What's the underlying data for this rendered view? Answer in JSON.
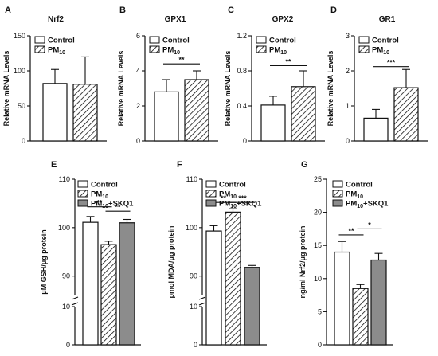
{
  "chart_data": [
    {
      "letter": "A",
      "type": "bar",
      "title": "Nrf2",
      "ylabel": "Relative mRNA Levels",
      "ylim": [
        0,
        150
      ],
      "yticks": [
        0,
        50,
        100,
        150
      ],
      "tick_labels": [
        "0",
        "50",
        "100",
        "150"
      ],
      "legend": [
        "Control",
        "PM10"
      ],
      "bars": [
        {
          "group": "Control",
          "value": 82,
          "error": 20,
          "fill": "open"
        },
        {
          "group": "PM10",
          "value": 81,
          "error": 39,
          "fill": "hatch"
        }
      ],
      "significance": []
    },
    {
      "letter": "B",
      "type": "bar",
      "title": "GPX1",
      "ylabel": "Relative mRNA Levels",
      "ylim": [
        0,
        6
      ],
      "yticks": [
        0,
        2,
        4,
        6
      ],
      "tick_labels": [
        "0",
        "2",
        "4",
        "6"
      ],
      "legend": [
        "Control",
        "PM10"
      ],
      "bars": [
        {
          "group": "Control",
          "value": 2.8,
          "error": 0.7,
          "fill": "open"
        },
        {
          "group": "PM10",
          "value": 3.5,
          "error": 0.5,
          "fill": "hatch"
        }
      ],
      "significance": [
        {
          "from": 0,
          "to": 1,
          "y": 4.4,
          "label": "**"
        }
      ]
    },
    {
      "letter": "C",
      "type": "bar",
      "title": "GPX2",
      "ylabel": "Relative mRNA Levels",
      "ylim": [
        0,
        1.2
      ],
      "yticks": [
        0,
        0.4,
        0.8,
        1.2
      ],
      "tick_labels": [
        "0",
        "0.4",
        "0.8",
        "1.2"
      ],
      "legend": [
        "Control",
        "PM10"
      ],
      "bars": [
        {
          "group": "Control",
          "value": 0.41,
          "error": 0.1,
          "fill": "open"
        },
        {
          "group": "PM10",
          "value": 0.62,
          "error": 0.18,
          "fill": "hatch"
        }
      ],
      "significance": [
        {
          "from": 0,
          "to": 1,
          "y": 0.86,
          "label": "**"
        }
      ]
    },
    {
      "letter": "D",
      "type": "bar",
      "title": "GR1",
      "ylabel": "Relative mRNA Levels",
      "ylim": [
        0,
        3
      ],
      "yticks": [
        0,
        1,
        2,
        3
      ],
      "tick_labels": [
        "0",
        "1",
        "2",
        "3"
      ],
      "legend": [
        "Control",
        "PM10"
      ],
      "bars": [
        {
          "group": "Control",
          "value": 0.65,
          "error": 0.25,
          "fill": "open"
        },
        {
          "group": "PM10",
          "value": 1.52,
          "error": 0.52,
          "fill": "hatch"
        }
      ],
      "significance": [
        {
          "from": 0,
          "to": 1,
          "y": 2.12,
          "label": "***"
        }
      ]
    },
    {
      "letter": "E",
      "type": "bar",
      "title": "",
      "ylabel": "μM GSH/μg protein",
      "broken_axis": {
        "lower": [
          0,
          10
        ],
        "upper": [
          86,
          110
        ]
      },
      "yticks": [
        0,
        10,
        90,
        100,
        110
      ],
      "tick_labels": [
        "0",
        "10",
        "90",
        "100",
        "110"
      ],
      "legend": [
        "Control",
        "PM10",
        "PM10+SKQ1"
      ],
      "bars": [
        {
          "group": "Control",
          "value": 101.1,
          "error": 1.2,
          "fill": "open"
        },
        {
          "group": "PM10",
          "value": 96.5,
          "error": 0.7,
          "fill": "hatch"
        },
        {
          "group": "PM10+SKQ1",
          "value": 101.0,
          "error": 0.7,
          "fill": "gray"
        }
      ],
      "significance": [
        {
          "from": 0,
          "to": 1,
          "y": 104.3,
          "label": "**"
        },
        {
          "from": 1,
          "to": 2,
          "y": 103.4,
          "label": "**"
        }
      ]
    },
    {
      "letter": "F",
      "type": "bar",
      "title": "",
      "ylabel": "pmol MDA/μg protein",
      "broken_axis": {
        "lower": [
          0,
          10
        ],
        "upper": [
          86,
          110
        ]
      },
      "yticks": [
        0,
        10,
        90,
        100,
        110
      ],
      "tick_labels": [
        "0",
        "10",
        "90",
        "100",
        "110"
      ],
      "legend": [
        "Control",
        "PM10",
        "PM10+SKQ1"
      ],
      "bars": [
        {
          "group": "Control",
          "value": 99.3,
          "error": 1.1,
          "fill": "open"
        },
        {
          "group": "PM10",
          "value": 103.2,
          "error": 0.7,
          "fill": "hatch"
        },
        {
          "group": "PM10+SKQ1",
          "value": 91.8,
          "error": 0.4,
          "fill": "gray"
        }
      ],
      "significance": [
        {
          "from": 0,
          "to": 1,
          "y": 105.2,
          "label": "**"
        },
        {
          "from": 1,
          "to": 2,
          "y": 105.2,
          "label": "***"
        }
      ]
    },
    {
      "letter": "G",
      "type": "bar",
      "title": "",
      "ylabel": "ng/ml Nrf2/μg protein",
      "ylim": [
        0,
        25
      ],
      "yticks": [
        0,
        5,
        10,
        15,
        20,
        25
      ],
      "tick_labels": [
        "0",
        "5",
        "10",
        "15",
        "20",
        "25"
      ],
      "legend": [
        "Control",
        "PM10",
        "PM10+SKQ1"
      ],
      "bars": [
        {
          "group": "Control",
          "value": 14,
          "error": 1.6,
          "fill": "open"
        },
        {
          "group": "PM10",
          "value": 8.5,
          "error": 0.6,
          "fill": "hatch"
        },
        {
          "group": "PM10+SKQ1",
          "value": 12.8,
          "error": 1.0,
          "fill": "gray"
        }
      ],
      "significance": [
        {
          "from": 0,
          "to": 1,
          "y": 16.6,
          "label": "**"
        },
        {
          "from": 1,
          "to": 2,
          "y": 17.5,
          "label": "*"
        }
      ]
    }
  ]
}
